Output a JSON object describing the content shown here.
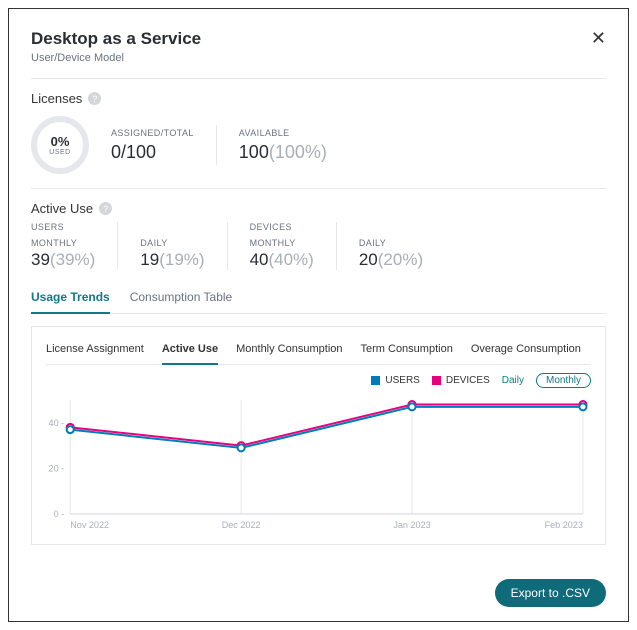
{
  "header": {
    "title": "Desktop as a Service",
    "subtitle": "User/Device Model"
  },
  "licenses": {
    "section_label": "Licenses",
    "ring_pct": "0%",
    "ring_used_label": "USED",
    "assigned_label": "ASSIGNED/TOTAL",
    "assigned_value": "0/100",
    "available_label": "AVAILABLE",
    "available_value": "100",
    "available_pct": "(100%)"
  },
  "active_use": {
    "section_label": "Active Use",
    "users_label": "USERS",
    "devices_label": "DEVICES",
    "monthly_label": "MONTHLY",
    "daily_label": "DAILY",
    "users_monthly": "39",
    "users_monthly_pct": "(39%)",
    "users_daily": "19",
    "users_daily_pct": "(19%)",
    "devices_monthly": "40",
    "devices_monthly_pct": "(40%)",
    "devices_daily": "20",
    "devices_daily_pct": "(20%)"
  },
  "tabs_main": {
    "usage_trends": "Usage Trends",
    "consumption_table": "Consumption Table"
  },
  "tabs_sub": {
    "license_assignment": "License Assignment",
    "active_use": "Active Use",
    "monthly_consumption": "Monthly Consumption",
    "term_consumption": "Term Consumption",
    "overage_consumption": "Overage Consumption"
  },
  "legend": {
    "users": "USERS",
    "devices": "DEVICES",
    "daily": "Daily",
    "monthly": "Monthly"
  },
  "chart": {
    "type": "line",
    "colors": {
      "users": "#007cba",
      "devices": "#e6007e",
      "grid": "#e5e7eb",
      "axis_text": "#a9afb7",
      "background": "#ffffff"
    },
    "x_labels": [
      "Nov 2022",
      "Dec 2022",
      "Jan 2023",
      "Feb 2023"
    ],
    "y_ticks": [
      0,
      20,
      40
    ],
    "ylim": [
      0,
      50
    ],
    "series_users": [
      37,
      29,
      47,
      47
    ],
    "series_devices": [
      38,
      30,
      48,
      48
    ],
    "marker": "circle",
    "marker_radius": 3.5,
    "line_width": 2
  },
  "export_label": "Export to .CSV"
}
